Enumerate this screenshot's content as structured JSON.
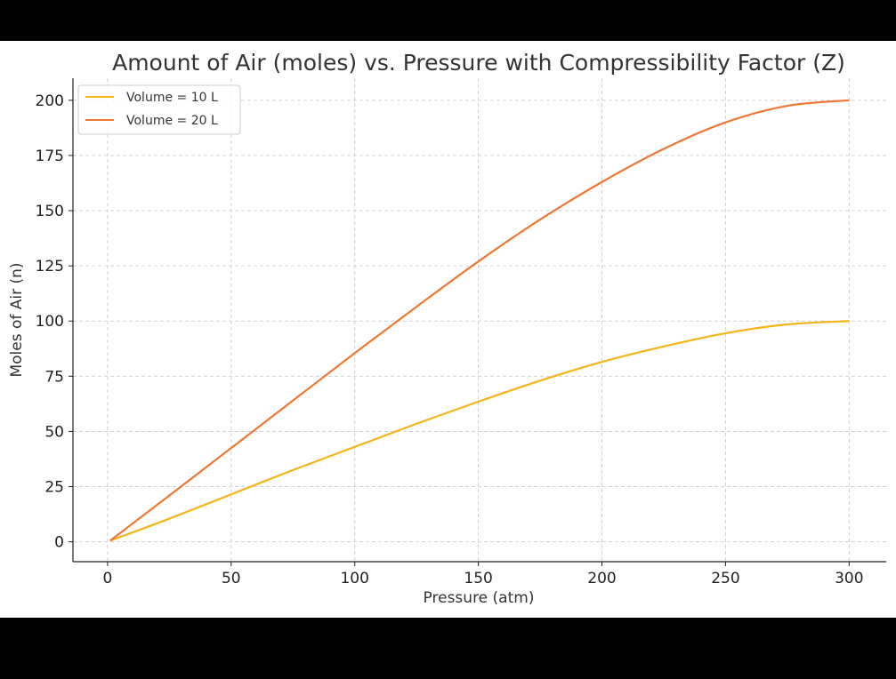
{
  "chart_data": {
    "type": "line",
    "title": "Amount of Air (moles) vs. Pressure with Compressibility Factor (Z)",
    "xlabel": "Pressure (atm)",
    "ylabel": "Moles of Air (n)",
    "xlim": [
      -14,
      315
    ],
    "ylim": [
      -9,
      210
    ],
    "xticks": [
      0,
      50,
      100,
      150,
      200,
      250,
      300
    ],
    "yticks": [
      0,
      25,
      50,
      75,
      100,
      125,
      150,
      175,
      200
    ],
    "grid": true,
    "legend_position": "top-left",
    "x": [
      1,
      25,
      50,
      75,
      100,
      125,
      150,
      175,
      200,
      225,
      250,
      275,
      300
    ],
    "series": [
      {
        "name": "Volume = 10 L",
        "color": "#F4B41A",
        "values": [
          0.5,
          10.5,
          21.5,
          32.5,
          43,
          53.5,
          63.5,
          73,
          81.5,
          88.5,
          94.5,
          98.5,
          100
        ]
      },
      {
        "name": "Volume = 20 L",
        "color": "#EE7733",
        "values": [
          0.5,
          21,
          42.5,
          64,
          85.5,
          106.5,
          127,
          146,
          163,
          178,
          190,
          197.5,
          200
        ]
      }
    ]
  }
}
